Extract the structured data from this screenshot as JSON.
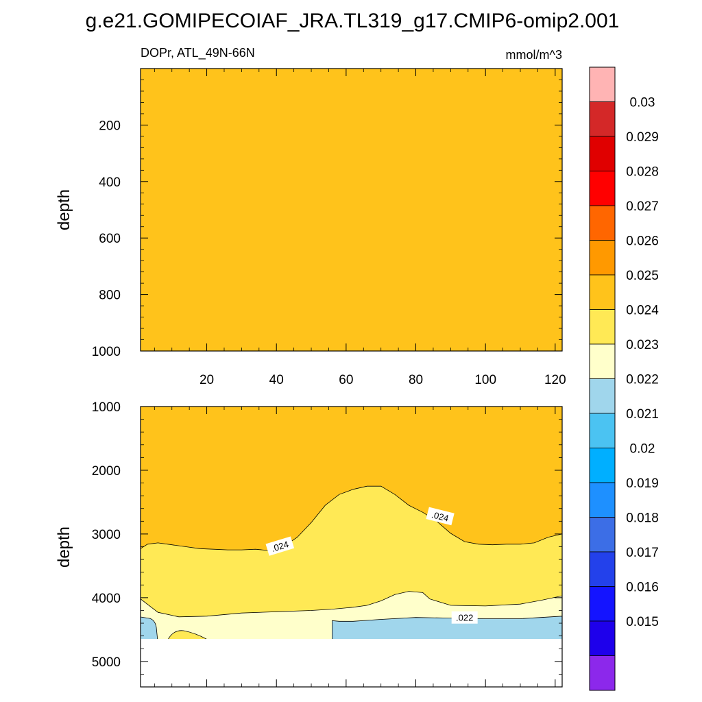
{
  "title": "g.e21.GOMIPECOIAF_JRA.TL319_g17.CMIP6-omip2.001",
  "chart_data": [
    {
      "type": "contour",
      "panel": "upper",
      "variable_label": "DOPr, ATL_49N-66N",
      "units_label": "mmol/m^3",
      "xlabel": "",
      "ylabel": "depth",
      "xlim": [
        1,
        122
      ],
      "ylim": [
        0,
        1000
      ],
      "y_inverted": true,
      "x_ticks": [
        "20",
        "40",
        "60",
        "80",
        "100",
        "120"
      ],
      "y_ticks": [
        "200",
        "400",
        "600",
        "800",
        "1000"
      ],
      "fill_band": "0.024-0.025",
      "fill_color": "#FFC31B"
    },
    {
      "type": "contour",
      "panel": "lower",
      "xlabel": "",
      "ylabel": "depth",
      "xlim": [
        1,
        122
      ],
      "ylim": [
        1000,
        5400
      ],
      "y_inverted": true,
      "y_ticks": [
        "1000",
        "2000",
        "3000",
        "4000",
        "5000"
      ],
      "contour_labels": [
        ".024",
        ".024",
        ".022"
      ],
      "band_colors": {
        "0.024-0.025": "#FFC31B",
        "0.023-0.024": "#FFE955",
        "0.022-0.023": "#FFFFCB",
        "0.021-0.022": "#A0D6EC"
      },
      "contour_024_x": [
        1,
        3,
        6,
        10,
        14,
        18,
        22,
        26,
        30,
        34,
        38,
        42,
        46,
        50,
        54,
        58,
        62,
        66,
        70,
        74,
        78,
        82,
        86,
        90,
        94,
        98,
        102,
        106,
        110,
        114,
        118,
        122
      ],
      "contour_024_depth": [
        3230,
        3160,
        3140,
        3170,
        3200,
        3230,
        3240,
        3250,
        3250,
        3240,
        3260,
        3200,
        3050,
        2820,
        2550,
        2380,
        2300,
        2250,
        2250,
        2380,
        2550,
        2660,
        2800,
        2990,
        3120,
        3160,
        3170,
        3160,
        3160,
        3140,
        3050,
        3000
      ],
      "contour_023_x": [
        1,
        6,
        12,
        20,
        30,
        40,
        50,
        56,
        62,
        66,
        70,
        74,
        78,
        82,
        84,
        90,
        100,
        110,
        116,
        122
      ],
      "contour_023_depth": [
        4020,
        4230,
        4300,
        4290,
        4240,
        4220,
        4200,
        4180,
        4150,
        4120,
        4050,
        3950,
        3900,
        3920,
        4020,
        4120,
        4130,
        4100,
        4040,
        3970
      ],
      "contour_022_x": [
        1,
        2,
        6,
        10,
        20,
        30,
        40,
        50,
        56,
        58,
        62,
        70,
        80,
        90,
        100,
        110,
        122
      ],
      "contour_022_depth": [
        4300,
        4310,
        4340,
        4360,
        4360,
        4360,
        4360,
        4360,
        4360,
        4370,
        4370,
        4340,
        4310,
        4320,
        4330,
        4330,
        4290
      ]
    },
    {
      "type": "colorbar",
      "tick_labels": [
        "0.03",
        "0.029",
        "0.028",
        "0.027",
        "0.026",
        "0.025",
        "0.024",
        "0.023",
        "0.022",
        "0.021",
        "0.02",
        "0.019",
        "0.018",
        "0.017",
        "0.016",
        "0.015"
      ],
      "colors": [
        "#FFB4B4",
        "#D42828",
        "#E00000",
        "#FF0000",
        "#FF6600",
        "#FF9900",
        "#FFC31B",
        "#FFE955",
        "#FFFFCB",
        "#A0D6EC",
        "#4BC3F2",
        "#00AFFF",
        "#1E90FF",
        "#3C6EE6",
        "#2341EB",
        "#1414FF",
        "#1E00EB",
        "#8C28EB"
      ]
    }
  ]
}
